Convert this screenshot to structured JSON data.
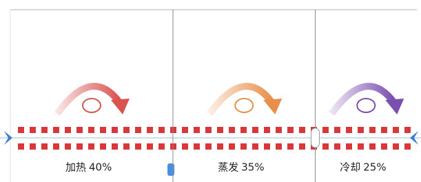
{
  "stages": [
    {
      "name": "加热",
      "value": 40,
      "value_label": "40%",
      "color": "#d9534f"
    },
    {
      "name": "蒸发",
      "value": 35,
      "value_label": "35%",
      "color": "#e8904a"
    },
    {
      "name": "冷却",
      "value": 25,
      "value_label": "25%",
      "color": "#7b4fb0"
    }
  ]
}
